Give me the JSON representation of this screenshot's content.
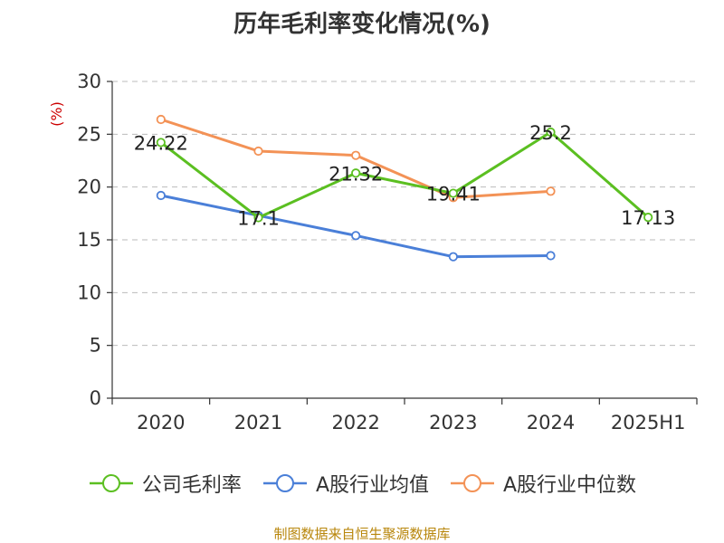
{
  "title": "历年毛利率变化情况(%)",
  "source_text": "制图数据来自恒生聚源数据库",
  "colors": {
    "company": "#5bbf21",
    "industry_avg": "#4a7fd8",
    "industry_median": "#f39256",
    "axis": "#333333",
    "grid": "#bbbbbb",
    "ylabel": "#cc0000",
    "source": "#b8860b"
  },
  "chart_data": {
    "type": "line",
    "title": "历年毛利率变化情况(%)",
    "xlabel": "",
    "ylabel": "(%)",
    "categories": [
      "2020",
      "2021",
      "2022",
      "2023",
      "2024",
      "2025H1"
    ],
    "ylim": [
      0,
      30
    ],
    "yticks": [
      0,
      5,
      10,
      15,
      20,
      25,
      30
    ],
    "grid": true,
    "legend_position": "bottom",
    "series": [
      {
        "name": "公司毛利率",
        "values": [
          24.22,
          17.1,
          21.32,
          19.41,
          25.2,
          17.13
        ],
        "labels": [
          "24.22",
          "17.1",
          "21.32",
          "19.41",
          "25.2",
          "17.13"
        ],
        "color_key": "company"
      },
      {
        "name": "A股行业均值",
        "values": [
          19.2,
          17.3,
          15.4,
          13.4,
          13.5,
          null
        ],
        "color_key": "industry_avg"
      },
      {
        "name": "A股行业中位数",
        "values": [
          26.4,
          23.4,
          23.0,
          19.0,
          19.6,
          null
        ],
        "color_key": "industry_median"
      }
    ]
  }
}
